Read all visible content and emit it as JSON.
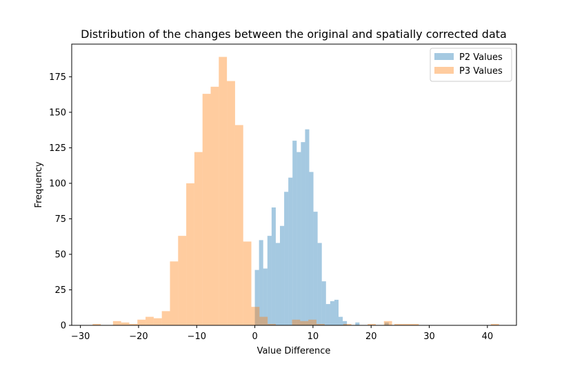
{
  "chart_data": {
    "type": "histogram",
    "title": "Distribution of the changes between the original and spatially corrected data",
    "xlabel": "Value Difference",
    "ylabel": "Frequency",
    "xlim": [
      -31.5,
      45
    ],
    "ylim": [
      0,
      198
    ],
    "xticks": [
      -30,
      -20,
      -10,
      0,
      10,
      20,
      30,
      40
    ],
    "yticks": [
      0,
      25,
      50,
      75,
      100,
      125,
      150,
      175
    ],
    "grid": false,
    "legend_position": "top-right",
    "series": [
      {
        "name": "P2 Values",
        "color": "#1f77b4",
        "opacity": 0.4,
        "bins": [
          [
            0.0,
            0.72,
            39
          ],
          [
            0.72,
            1.44,
            60
          ],
          [
            1.44,
            2.16,
            40
          ],
          [
            2.16,
            2.88,
            63
          ],
          [
            2.88,
            3.6,
            83
          ],
          [
            3.6,
            4.32,
            58
          ],
          [
            4.32,
            5.04,
            70
          ],
          [
            5.04,
            5.76,
            94
          ],
          [
            5.76,
            6.48,
            104
          ],
          [
            6.48,
            7.2,
            130
          ],
          [
            7.2,
            7.92,
            122
          ],
          [
            7.92,
            8.64,
            129
          ],
          [
            8.64,
            9.36,
            138
          ],
          [
            9.36,
            10.08,
            108
          ],
          [
            10.08,
            10.8,
            80
          ],
          [
            10.8,
            11.52,
            58
          ],
          [
            11.52,
            12.24,
            31
          ],
          [
            12.24,
            12.96,
            15
          ],
          [
            12.96,
            13.68,
            17
          ],
          [
            13.68,
            14.4,
            18
          ],
          [
            14.4,
            15.12,
            6
          ],
          [
            15.12,
            15.84,
            3
          ],
          [
            17.28,
            18.0,
            2
          ],
          [
            22.32,
            23.04,
            2
          ]
        ]
      },
      {
        "name": "P3 Values",
        "color": "#ff7f0e",
        "opacity": 0.4,
        "bins": [
          [
            -27.9,
            -26.5,
            1
          ],
          [
            -24.4,
            -23.0,
            3
          ],
          [
            -23.0,
            -21.6,
            2
          ],
          [
            -21.6,
            -20.2,
            1
          ],
          [
            -20.2,
            -18.8,
            4
          ],
          [
            -18.8,
            -17.4,
            6
          ],
          [
            -17.4,
            -16.0,
            5
          ],
          [
            -16.0,
            -14.6,
            10
          ],
          [
            -14.6,
            -13.2,
            45
          ],
          [
            -13.2,
            -11.8,
            63
          ],
          [
            -11.8,
            -10.4,
            100
          ],
          [
            -10.4,
            -9.0,
            122
          ],
          [
            -9.0,
            -7.6,
            163
          ],
          [
            -7.6,
            -6.2,
            168
          ],
          [
            -6.2,
            -4.8,
            189
          ],
          [
            -4.8,
            -3.4,
            172
          ],
          [
            -3.4,
            -2.0,
            141
          ],
          [
            -2.0,
            -0.6,
            59
          ],
          [
            -0.6,
            0.8,
            13
          ],
          [
            0.8,
            2.2,
            6
          ],
          [
            2.2,
            3.6,
            1
          ],
          [
            6.4,
            7.8,
            4
          ],
          [
            7.8,
            9.2,
            3
          ],
          [
            9.2,
            10.6,
            4
          ],
          [
            10.6,
            12.0,
            1
          ],
          [
            15.2,
            16.6,
            1
          ],
          [
            19.4,
            20.8,
            1
          ],
          [
            22.2,
            23.6,
            3
          ],
          [
            24.0,
            25.4,
            1
          ],
          [
            25.4,
            26.8,
            1
          ],
          [
            26.8,
            28.2,
            1
          ],
          [
            40.6,
            42.0,
            1
          ]
        ]
      }
    ]
  }
}
